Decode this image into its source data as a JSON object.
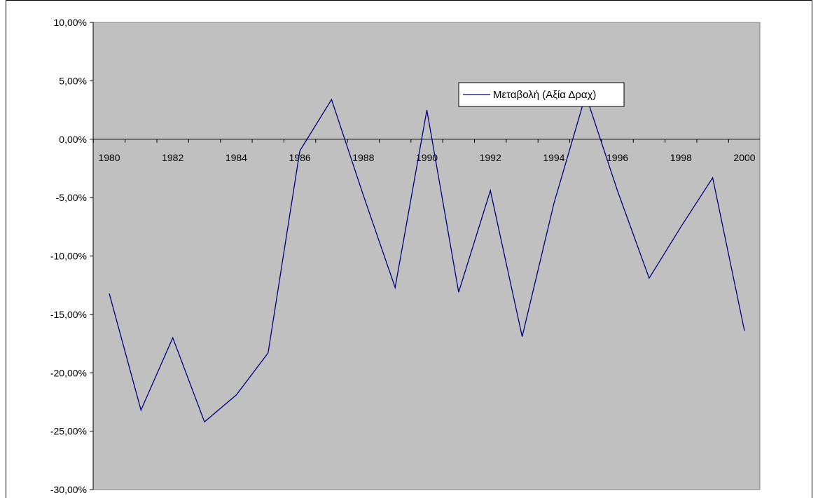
{
  "chart_data": {
    "type": "line",
    "title": "",
    "xlabel": "",
    "ylabel": "",
    "x": [
      1980,
      1981,
      1982,
      1983,
      1984,
      1985,
      1986,
      1987,
      1988,
      1989,
      1990,
      1991,
      1992,
      1993,
      1994,
      1995,
      1996,
      1997,
      1998,
      1999,
      2000
    ],
    "x_tick_labels": [
      "1980",
      "1982",
      "1984",
      "1986",
      "1988",
      "1990",
      "1992",
      "1994",
      "1996",
      "1998",
      "2000"
    ],
    "y_tick_labels": [
      "10,00%",
      "5,00%",
      "0,00%",
      "-5,00%",
      "-10,00%",
      "-15,00%",
      "-20,00%",
      "-25,00%",
      "-30,00%"
    ],
    "y_ticks": [
      10,
      5,
      0,
      -5,
      -10,
      -15,
      -20,
      -25,
      -30
    ],
    "ylim": [
      -30,
      10
    ],
    "y_unit": "%",
    "series": [
      {
        "name": "Μεταβολή (Αξία Δραχ)",
        "color": "#000080",
        "values": [
          -13.2,
          -23.2,
          -17.0,
          -24.2,
          -21.9,
          -18.3,
          -1.0,
          3.4,
          -4.8,
          -12.7,
          2.5,
          -13.1,
          -4.4,
          -16.9,
          -5.5,
          3.8,
          -4.4,
          -11.9,
          -7.5,
          -3.3,
          -16.4
        ]
      }
    ],
    "plot_background": "#c0c0c0",
    "grid": false,
    "legend_position": "top-center-right"
  }
}
